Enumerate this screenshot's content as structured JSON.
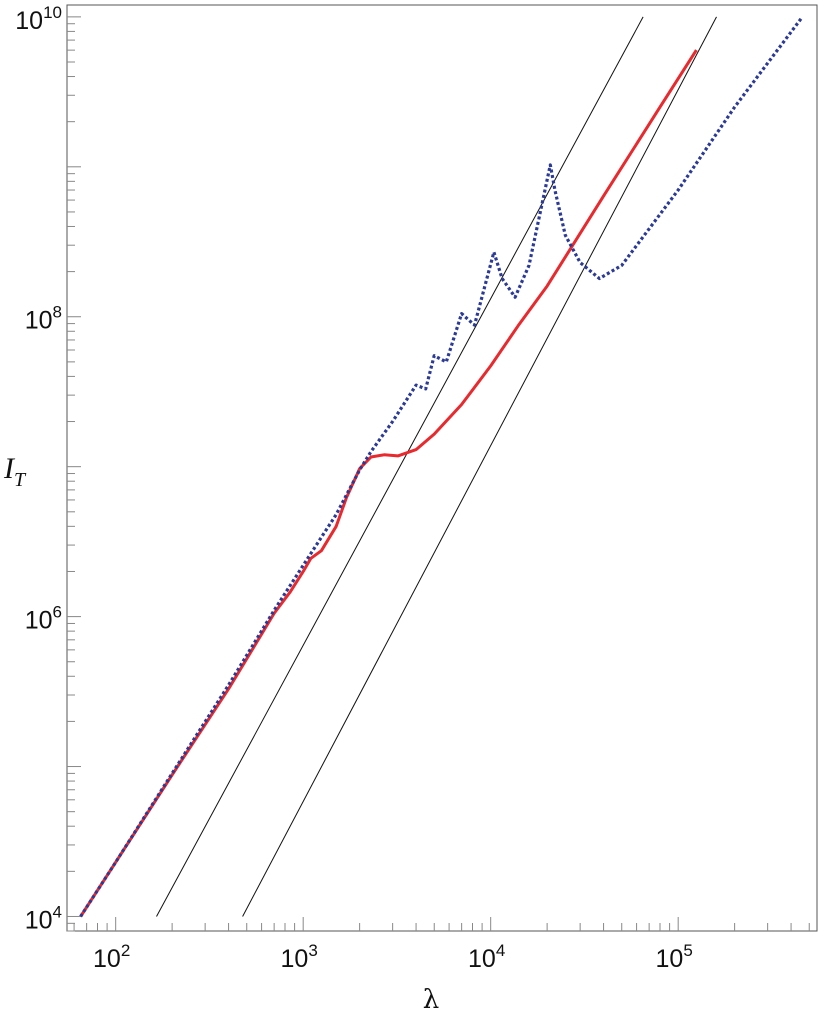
{
  "chart_data": {
    "type": "line",
    "xscale": "log",
    "yscale": "log",
    "xlim": [
      55,
      550000
    ],
    "ylim": [
      8000,
      12000000000
    ],
    "xlabel": "λ",
    "ylabel": {
      "main": "I",
      "sub": "T"
    },
    "xticks": [
      {
        "value": 100,
        "base": "10",
        "exp": "2"
      },
      {
        "value": 1000,
        "base": "10",
        "exp": "3"
      },
      {
        "value": 10000,
        "base": "10",
        "exp": "4"
      },
      {
        "value": 100000,
        "base": "10",
        "exp": "5"
      }
    ],
    "yticks": [
      {
        "value": 10000,
        "base": "10",
        "exp": "4"
      },
      {
        "value": 1000000,
        "base": "10",
        "exp": "6"
      },
      {
        "value": 100000000,
        "base": "10",
        "exp": "8"
      },
      {
        "value": 10000000000,
        "base": "10",
        "exp": "10"
      }
    ],
    "series": [
      {
        "style": "solid",
        "color": "#e8292d",
        "points": [
          [
            65,
            10000
          ],
          [
            100,
            23000
          ],
          [
            200,
            88000
          ],
          [
            400,
            330000
          ],
          [
            700,
            1050000
          ],
          [
            850,
            1450000
          ],
          [
            1000,
            2000000
          ],
          [
            1100,
            2450000
          ],
          [
            1250,
            2750000
          ],
          [
            1500,
            4000000
          ],
          [
            1700,
            6200000
          ],
          [
            2000,
            9700000
          ],
          [
            2300,
            11600000
          ],
          [
            2700,
            12000000
          ],
          [
            3200,
            11800000
          ],
          [
            4000,
            13000000
          ],
          [
            5000,
            16500000
          ],
          [
            7000,
            26000000
          ],
          [
            10000,
            47000000
          ],
          [
            14000,
            87000000
          ],
          [
            20000,
            160000000
          ],
          [
            40000,
            640000000
          ],
          [
            80000,
            2500000000
          ],
          [
            125000,
            6000000000
          ]
        ]
      },
      {
        "style": "dotted",
        "color": "#2b3a96",
        "points": [
          [
            65,
            10000
          ],
          [
            100,
            23000
          ],
          [
            200,
            90000
          ],
          [
            400,
            350000
          ],
          [
            700,
            1100000
          ],
          [
            1000,
            2200000
          ],
          [
            1500,
            4800000
          ],
          [
            2000,
            9500000
          ],
          [
            2300,
            12600000
          ],
          [
            3000,
            20000000
          ],
          [
            4000,
            35000000
          ],
          [
            4500,
            33000000
          ],
          [
            5000,
            55000000
          ],
          [
            5800,
            50000000
          ],
          [
            7000,
            105000000
          ],
          [
            8200,
            88000000
          ],
          [
            10400,
            270000000
          ],
          [
            11500,
            180000000
          ],
          [
            13500,
            135000000
          ],
          [
            16000,
            220000000
          ],
          [
            20800,
            1030000000
          ],
          [
            22000,
            700000000
          ],
          [
            25000,
            350000000
          ],
          [
            30000,
            230000000
          ],
          [
            38000,
            180000000
          ],
          [
            50000,
            220000000
          ],
          [
            100000,
            700000000
          ],
          [
            200000,
            2500000000
          ],
          [
            460000,
            10000000000
          ]
        ]
      }
    ],
    "reference_lines": [
      {
        "color": "#111111",
        "points": [
          [
            165,
            10000
          ],
          [
            65000,
            10000000000
          ]
        ]
      },
      {
        "color": "#111111",
        "points": [
          [
            475,
            10000
          ],
          [
            160000,
            10000000000
          ]
        ]
      }
    ]
  }
}
